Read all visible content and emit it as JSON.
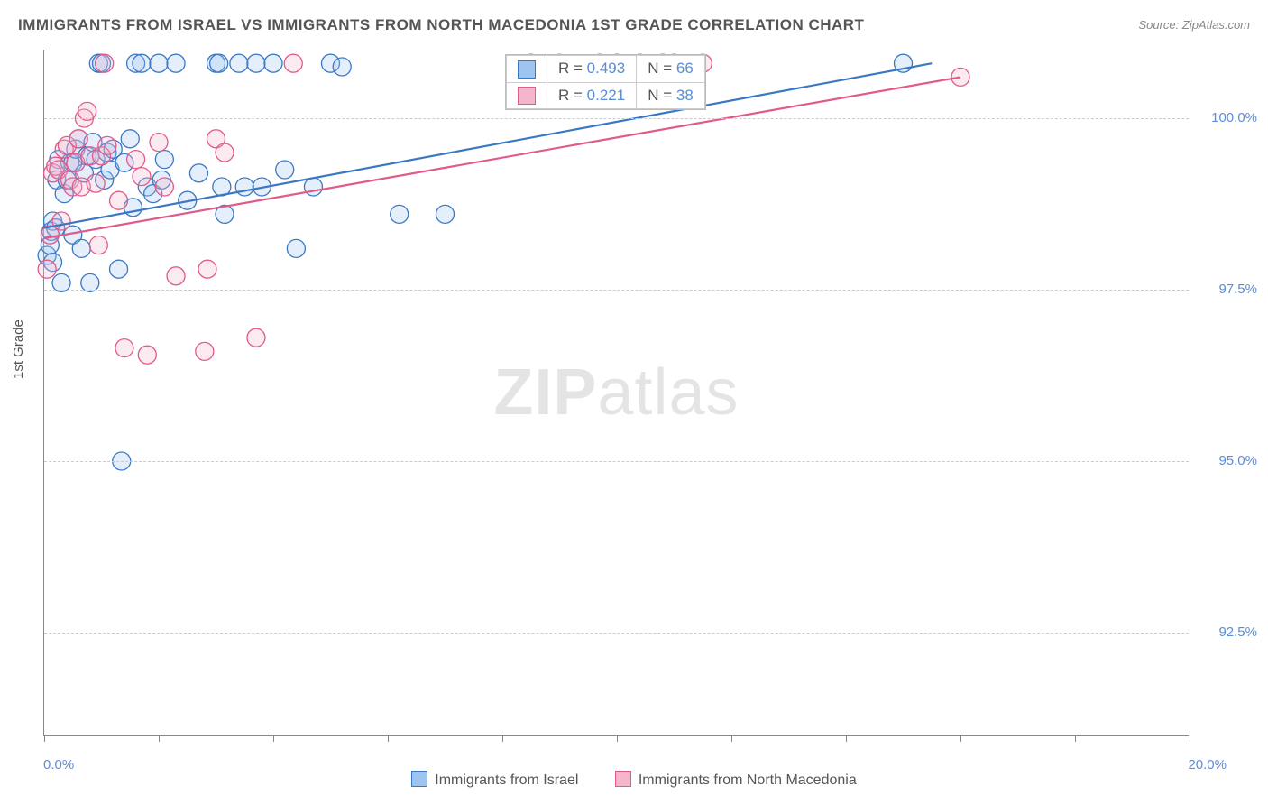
{
  "title": "IMMIGRANTS FROM ISRAEL VS IMMIGRANTS FROM NORTH MACEDONIA 1ST GRADE CORRELATION CHART",
  "source": "Source: ZipAtlas.com",
  "watermark_bold": "ZIP",
  "watermark_light": "atlas",
  "chart": {
    "type": "scatter",
    "ylabel": "1st Grade",
    "xlim": [
      0.0,
      20.0
    ],
    "ylim": [
      91.0,
      101.0
    ],
    "x_tick_label_left": "0.0%",
    "x_tick_label_right": "20.0%",
    "x_tick_positions": [
      0.0,
      2.0,
      4.0,
      6.0,
      8.0,
      10.0,
      12.0,
      14.0,
      16.0,
      18.0,
      20.0
    ],
    "y_gridlines": [
      92.5,
      95.0,
      97.5,
      100.0
    ],
    "y_tick_labels": [
      "92.5%",
      "95.0%",
      "97.5%",
      "100.0%"
    ],
    "grid_color": "#cccccc",
    "axis_color": "#888888",
    "background_color": "#ffffff",
    "marker_radius": 10,
    "marker_fill_opacity": 0.28,
    "marker_stroke_width": 1.3,
    "line_width": 2.2,
    "series": [
      {
        "name": "Immigrants from Israel",
        "color_stroke": "#3b78c4",
        "color_fill": "#9ec5f0",
        "r_value": "0.493",
        "n_value": "66",
        "trend": {
          "x1": 0.0,
          "y1": 98.4,
          "x2": 15.5,
          "y2": 100.8
        },
        "points": [
          [
            0.05,
            98.0
          ],
          [
            0.1,
            98.15
          ],
          [
            0.12,
            98.35
          ],
          [
            0.15,
            98.5
          ],
          [
            0.15,
            97.9
          ],
          [
            0.2,
            98.4
          ],
          [
            0.22,
            99.1
          ],
          [
            0.25,
            99.4
          ],
          [
            0.3,
            97.6
          ],
          [
            0.35,
            98.9
          ],
          [
            0.4,
            99.1
          ],
          [
            0.45,
            99.35
          ],
          [
            0.5,
            99.35
          ],
          [
            0.5,
            98.3
          ],
          [
            0.55,
            99.55
          ],
          [
            0.6,
            99.7
          ],
          [
            0.65,
            98.1
          ],
          [
            0.7,
            99.2
          ],
          [
            0.75,
            99.45
          ],
          [
            0.8,
            97.6
          ],
          [
            0.85,
            99.65
          ],
          [
            0.9,
            99.4
          ],
          [
            0.95,
            100.8
          ],
          [
            1.0,
            100.8
          ],
          [
            1.05,
            99.1
          ],
          [
            1.1,
            99.5
          ],
          [
            1.15,
            99.25
          ],
          [
            1.2,
            99.55
          ],
          [
            1.3,
            97.8
          ],
          [
            1.35,
            95.0
          ],
          [
            1.4,
            99.35
          ],
          [
            1.5,
            99.7
          ],
          [
            1.55,
            98.7
          ],
          [
            1.6,
            100.8
          ],
          [
            1.7,
            100.8
          ],
          [
            1.8,
            99.0
          ],
          [
            1.9,
            98.9
          ],
          [
            2.0,
            100.8
          ],
          [
            2.05,
            99.1
          ],
          [
            2.1,
            99.4
          ],
          [
            2.3,
            100.8
          ],
          [
            2.5,
            98.8
          ],
          [
            2.7,
            99.2
          ],
          [
            3.0,
            100.8
          ],
          [
            3.05,
            100.8
          ],
          [
            3.1,
            99.0
          ],
          [
            3.15,
            98.6
          ],
          [
            3.4,
            100.8
          ],
          [
            3.5,
            99.0
          ],
          [
            3.7,
            100.8
          ],
          [
            3.8,
            99.0
          ],
          [
            4.0,
            100.8
          ],
          [
            4.2,
            99.25
          ],
          [
            4.4,
            98.1
          ],
          [
            4.7,
            99.0
          ],
          [
            5.0,
            100.8
          ],
          [
            5.2,
            100.75
          ],
          [
            6.2,
            98.6
          ],
          [
            7.0,
            98.6
          ],
          [
            8.5,
            100.8
          ],
          [
            9.7,
            100.8
          ],
          [
            10.0,
            100.8
          ],
          [
            10.4,
            100.8
          ],
          [
            10.8,
            100.8
          ],
          [
            11.0,
            100.8
          ],
          [
            15.0,
            100.8
          ]
        ]
      },
      {
        "name": "Immigrants from North Macedonia",
        "color_stroke": "#e05a8a",
        "color_fill": "#f5b5cc",
        "r_value": "0.221",
        "n_value": "38",
        "trend": {
          "x1": 0.0,
          "y1": 98.25,
          "x2": 16.0,
          "y2": 100.6
        },
        "points": [
          [
            0.05,
            97.8
          ],
          [
            0.1,
            98.3
          ],
          [
            0.15,
            99.2
          ],
          [
            0.2,
            99.3
          ],
          [
            0.25,
            99.25
          ],
          [
            0.3,
            98.5
          ],
          [
            0.35,
            99.55
          ],
          [
            0.4,
            99.6
          ],
          [
            0.45,
            99.1
          ],
          [
            0.5,
            99.0
          ],
          [
            0.55,
            99.35
          ],
          [
            0.6,
            99.7
          ],
          [
            0.65,
            99.0
          ],
          [
            0.7,
            100.0
          ],
          [
            0.75,
            100.1
          ],
          [
            0.8,
            99.45
          ],
          [
            0.9,
            99.05
          ],
          [
            0.95,
            98.15
          ],
          [
            1.0,
            99.45
          ],
          [
            1.05,
            100.8
          ],
          [
            1.1,
            99.6
          ],
          [
            1.3,
            98.8
          ],
          [
            1.4,
            96.65
          ],
          [
            1.6,
            99.4
          ],
          [
            1.7,
            99.15
          ],
          [
            1.8,
            96.55
          ],
          [
            2.0,
            99.65
          ],
          [
            2.1,
            99.0
          ],
          [
            2.3,
            97.7
          ],
          [
            2.8,
            96.6
          ],
          [
            2.85,
            97.8
          ],
          [
            3.0,
            99.7
          ],
          [
            3.15,
            99.5
          ],
          [
            3.7,
            96.8
          ],
          [
            4.35,
            100.8
          ],
          [
            9.0,
            100.8
          ],
          [
            11.5,
            100.8
          ],
          [
            16.0,
            100.6
          ]
        ]
      }
    ],
    "legend_labels": [
      "Immigrants from Israel",
      "Immigrants from North Macedonia"
    ],
    "stats_header_r": "R =",
    "stats_header_n": "N ="
  }
}
